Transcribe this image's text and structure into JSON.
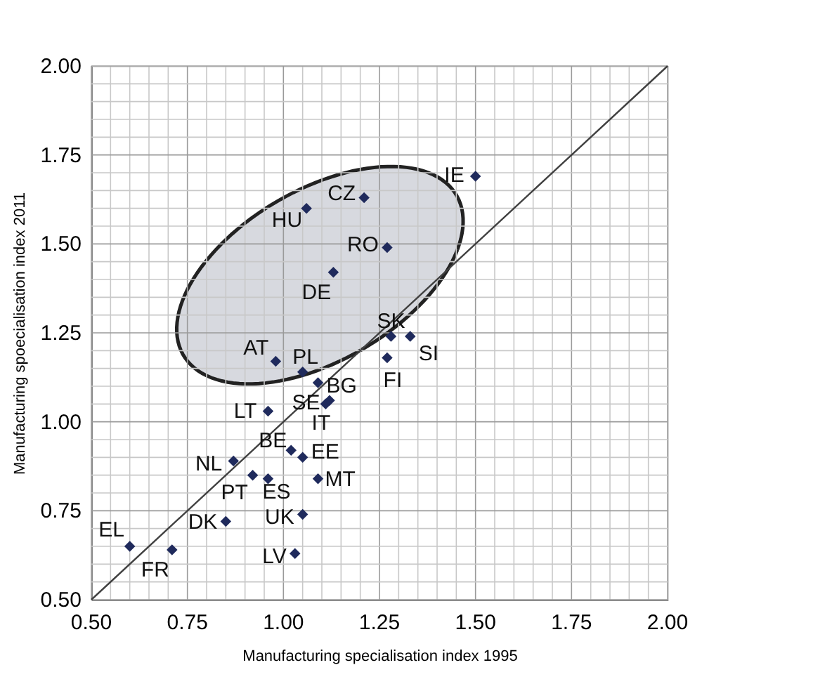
{
  "chart_data": {
    "type": "scatter",
    "xlabel": "Manufacturing specialisation index 1995",
    "ylabel": "Manufacturing spoecialisation index 2011",
    "xlim": [
      0.5,
      2.0
    ],
    "ylim": [
      0.5,
      2.0
    ],
    "xticks": [
      {
        "value": 0.5,
        "label": "0.50"
      },
      {
        "value": 0.55,
        "label": null
      },
      {
        "value": 0.6,
        "label": null
      },
      {
        "value": 0.65,
        "label": null
      },
      {
        "value": 0.7,
        "label": null
      },
      {
        "value": 0.75,
        "label": "0.75"
      },
      {
        "value": 0.8,
        "label": null
      },
      {
        "value": 0.85,
        "label": null
      },
      {
        "value": 0.9,
        "label": null
      },
      {
        "value": 0.95,
        "label": null
      },
      {
        "value": 1.0,
        "label": "1.00"
      },
      {
        "value": 1.05,
        "label": null
      },
      {
        "value": 1.1,
        "label": null
      },
      {
        "value": 1.15,
        "label": null
      },
      {
        "value": 1.2,
        "label": null
      },
      {
        "value": 1.25,
        "label": "1.25"
      },
      {
        "value": 1.3,
        "label": null
      },
      {
        "value": 1.35,
        "label": null
      },
      {
        "value": 1.4,
        "label": null
      },
      {
        "value": 1.45,
        "label": null
      },
      {
        "value": 1.5,
        "label": "1.50"
      },
      {
        "value": 1.55,
        "label": null
      },
      {
        "value": 1.6,
        "label": null
      },
      {
        "value": 1.65,
        "label": null
      },
      {
        "value": 1.7,
        "label": null
      },
      {
        "value": 1.75,
        "label": "1.75"
      },
      {
        "value": 1.8,
        "label": null
      },
      {
        "value": 1.85,
        "label": null
      },
      {
        "value": 1.9,
        "label": null
      },
      {
        "value": 1.95,
        "label": null
      },
      {
        "value": 2.0,
        "label": "2.00"
      }
    ],
    "yticks": [
      {
        "value": 0.5,
        "label": "0.50"
      },
      {
        "value": 0.55,
        "label": null
      },
      {
        "value": 0.6,
        "label": null
      },
      {
        "value": 0.65,
        "label": null
      },
      {
        "value": 0.7,
        "label": null
      },
      {
        "value": 0.75,
        "label": "0.75"
      },
      {
        "value": 0.8,
        "label": null
      },
      {
        "value": 0.85,
        "label": null
      },
      {
        "value": 0.9,
        "label": null
      },
      {
        "value": 0.95,
        "label": null
      },
      {
        "value": 1.0,
        "label": "1.00"
      },
      {
        "value": 1.05,
        "label": null
      },
      {
        "value": 1.1,
        "label": null
      },
      {
        "value": 1.15,
        "label": null
      },
      {
        "value": 1.2,
        "label": null
      },
      {
        "value": 1.25,
        "label": "1.25"
      },
      {
        "value": 1.3,
        "label": null
      },
      {
        "value": 1.35,
        "label": null
      },
      {
        "value": 1.4,
        "label": null
      },
      {
        "value": 1.45,
        "label": null
      },
      {
        "value": 1.5,
        "label": "1.50"
      },
      {
        "value": 1.55,
        "label": null
      },
      {
        "value": 1.6,
        "label": null
      },
      {
        "value": 1.65,
        "label": null
      },
      {
        "value": 1.7,
        "label": null
      },
      {
        "value": 1.75,
        "label": "1.75"
      },
      {
        "value": 1.8,
        "label": null
      },
      {
        "value": 1.85,
        "label": null
      },
      {
        "value": 1.9,
        "label": null
      },
      {
        "value": 1.95,
        "label": null
      },
      {
        "value": 2.0,
        "label": "2.00"
      }
    ],
    "grid": true,
    "marker": "diamond",
    "series": [
      {
        "type": "scatter",
        "color": "#1f2a5c",
        "x": [
          1.5,
          1.21,
          1.06,
          1.27,
          1.13,
          1.28,
          1.33,
          1.27,
          0.98,
          1.05,
          1.09,
          1.11,
          1.12,
          0.96,
          1.02,
          1.05,
          0.87,
          0.92,
          0.96,
          1.09,
          0.85,
          1.05,
          0.6,
          0.71,
          1.03
        ],
        "values": [
          1.69,
          1.63,
          1.6,
          1.49,
          1.42,
          1.24,
          1.24,
          1.18,
          1.17,
          1.14,
          1.11,
          1.05,
          1.06,
          1.03,
          0.92,
          0.9,
          0.89,
          0.85,
          0.84,
          0.84,
          0.72,
          0.74,
          0.65,
          0.64,
          0.63
        ]
      },
      {
        "type": "line",
        "marker": "none",
        "color": "#404040",
        "x": [
          0.5,
          2.0
        ],
        "values": [
          0.5,
          2.0
        ]
      }
    ],
    "annotations": [
      {
        "text": "IE",
        "x": 1.5,
        "y": 1.69
      },
      {
        "text": "CZ",
        "x": 1.21,
        "y": 1.63
      },
      {
        "text": "HU",
        "x": 1.06,
        "y": 1.6
      },
      {
        "text": "RO",
        "x": 1.27,
        "y": 1.49
      },
      {
        "text": "DE",
        "x": 1.13,
        "y": 1.42
      },
      {
        "text": "SK",
        "x": 1.28,
        "y": 1.24
      },
      {
        "text": "SI",
        "x": 1.33,
        "y": 1.24
      },
      {
        "text": "FI",
        "x": 1.27,
        "y": 1.18
      },
      {
        "text": "AT",
        "x": 0.98,
        "y": 1.17
      },
      {
        "text": "PL",
        "x": 1.05,
        "y": 1.14
      },
      {
        "text": "BG",
        "x": 1.09,
        "y": 1.11
      },
      {
        "text": "SE",
        "x": 1.11,
        "y": 1.05
      },
      {
        "text": "IT",
        "x": 1.12,
        "y": 1.06
      },
      {
        "text": "LT",
        "x": 0.96,
        "y": 1.03
      },
      {
        "text": "BE",
        "x": 1.02,
        "y": 0.92
      },
      {
        "text": "EE",
        "x": 1.05,
        "y": 0.9
      },
      {
        "text": "NL",
        "x": 0.87,
        "y": 0.89
      },
      {
        "text": "PT",
        "x": 0.92,
        "y": 0.85
      },
      {
        "text": "ES",
        "x": 0.96,
        "y": 0.84
      },
      {
        "text": "MT",
        "x": 1.09,
        "y": 0.84
      },
      {
        "text": "DK",
        "x": 0.85,
        "y": 0.72
      },
      {
        "text": "UK",
        "x": 1.05,
        "y": 0.74
      },
      {
        "text": "EL",
        "x": 0.6,
        "y": 0.65
      },
      {
        "text": "FR",
        "x": 0.71,
        "y": 0.64
      },
      {
        "text": "LV",
        "x": 1.03,
        "y": 0.63
      }
    ]
  }
}
